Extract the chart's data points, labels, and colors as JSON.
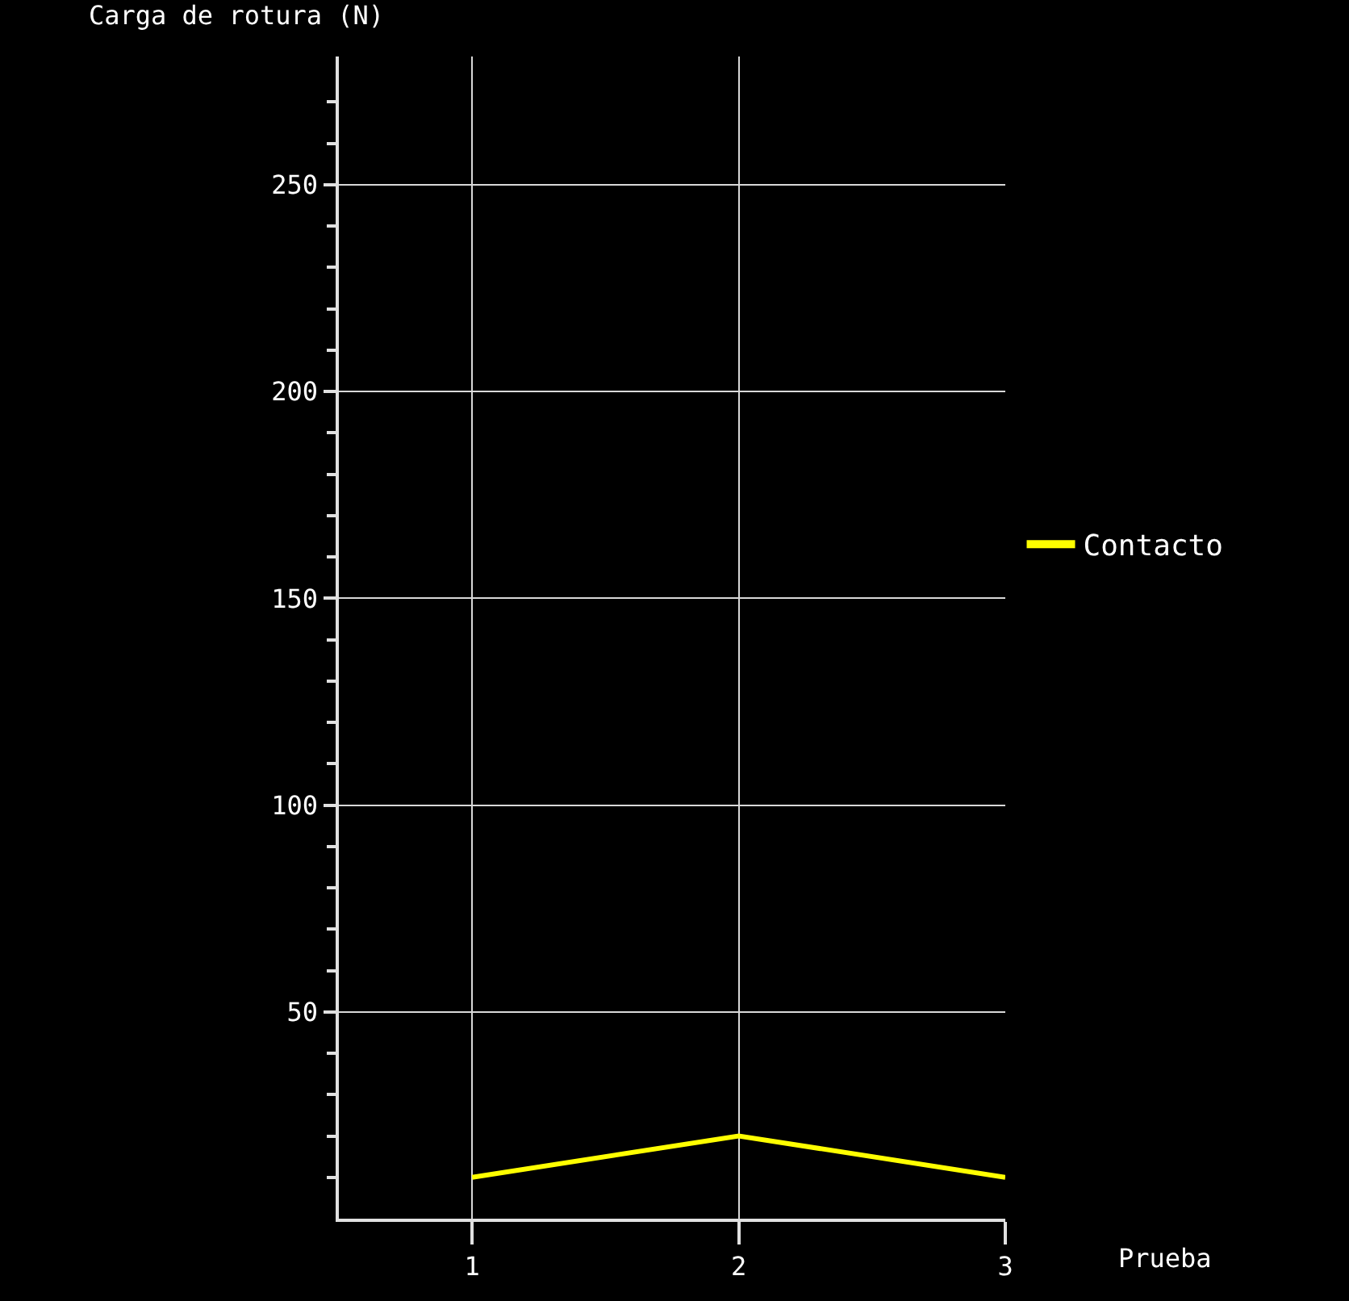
{
  "chart_data": {
    "type": "line",
    "xlabel": "Prueba",
    "ylabel": "Carga de rotura (N)",
    "x": [
      1,
      2,
      3
    ],
    "series": [
      {
        "name": "Contacto",
        "color": "#ffff00",
        "values": [
          10,
          20,
          10
        ]
      }
    ],
    "xlim": [
      0.5,
      3
    ],
    "xticks": [
      1,
      2,
      3
    ],
    "ylim": [
      0,
      281
    ],
    "yticks": [
      {
        "value": 10,
        "label": null
      },
      {
        "value": 20,
        "label": null
      },
      {
        "value": 30,
        "label": null
      },
      {
        "value": 40,
        "label": null
      },
      50,
      {
        "value": 60,
        "label": null
      },
      {
        "value": 70,
        "label": null
      },
      {
        "value": 80,
        "label": null
      },
      {
        "value": 90,
        "label": null
      },
      100,
      {
        "value": 110,
        "label": null
      },
      {
        "value": 120,
        "label": null
      },
      {
        "value": 130,
        "label": null
      },
      {
        "value": 140,
        "label": null
      },
      150,
      {
        "value": 160,
        "label": null
      },
      {
        "value": 170,
        "label": null
      },
      {
        "value": 180,
        "label": null
      },
      {
        "value": 190,
        "label": null
      },
      200,
      {
        "value": 210,
        "label": null
      },
      {
        "value": 220,
        "label": null
      },
      {
        "value": 230,
        "label": null
      },
      {
        "value": 240,
        "label": null
      },
      250,
      {
        "value": 260,
        "label": null
      },
      {
        "value": 270,
        "label": null
      }
    ],
    "grid": true,
    "legend": "right",
    "marker": "none",
    "line_style": "solid"
  }
}
